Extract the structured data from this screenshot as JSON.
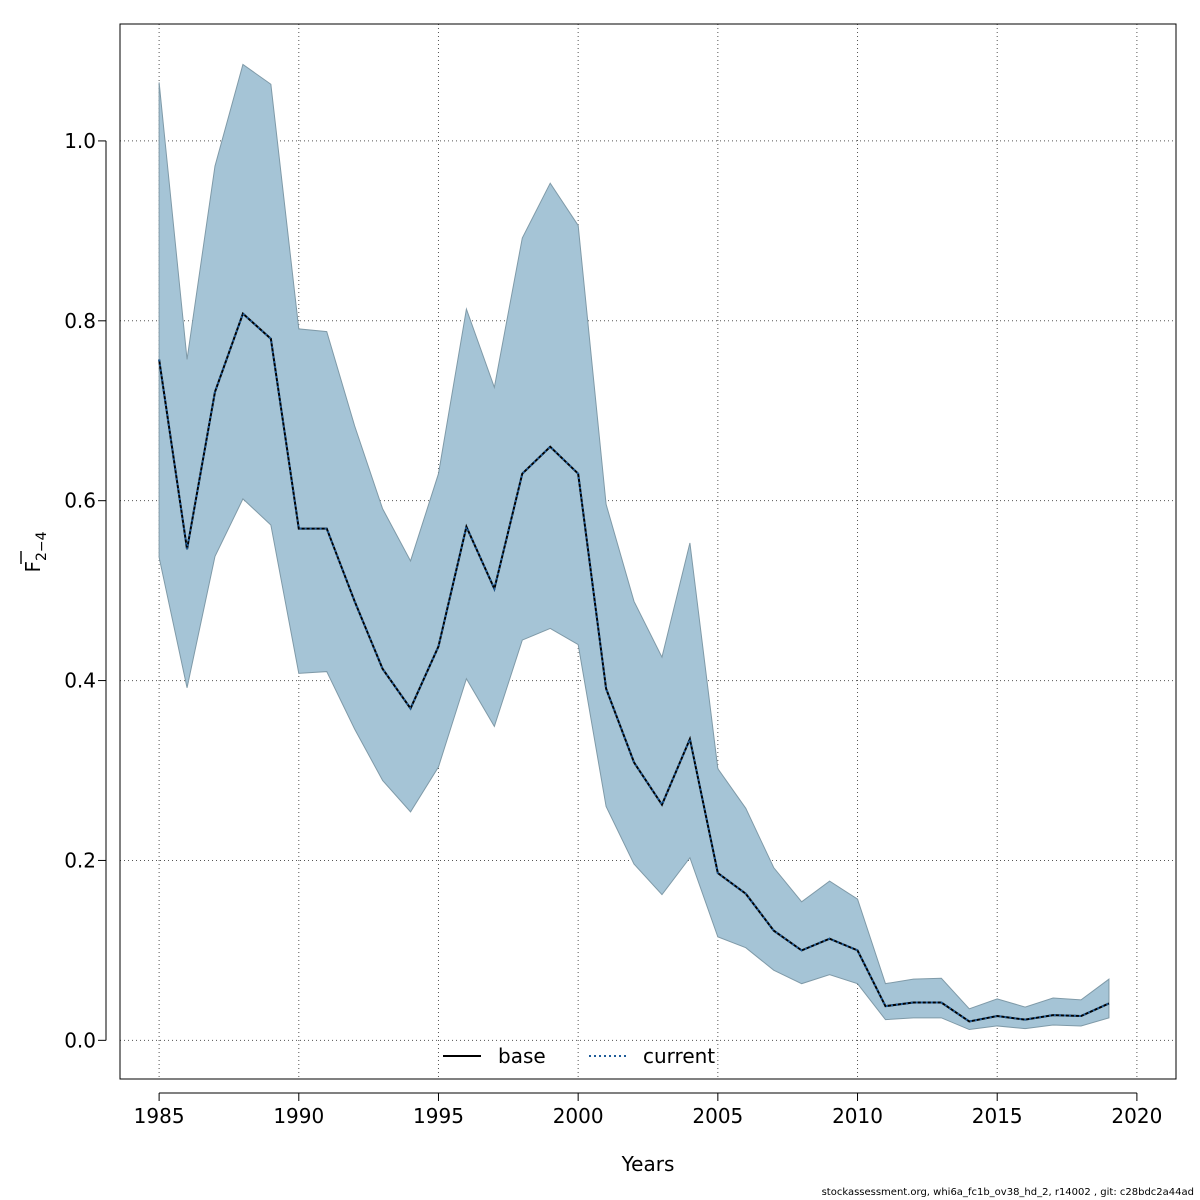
{
  "chart_data": {
    "type": "line",
    "xlabel": "Years",
    "ylabel_main": "F",
    "ylabel_sub": "2−4",
    "xlim": [
      1983.6,
      2021.4
    ],
    "ylim": [
      -0.043,
      1.13
    ],
    "x_ticks": [
      1985,
      1990,
      1995,
      2000,
      2005,
      2010,
      2015,
      2020
    ],
    "y_ticks": [
      "0.0",
      "0.2",
      "0.4",
      "0.6",
      "0.8",
      "1.0"
    ],
    "y_tick_values": [
      0.0,
      0.2,
      0.4,
      0.6,
      0.8,
      1.0
    ],
    "grid": true,
    "legend_position": "bottom-center",
    "legend": [
      {
        "label": "base",
        "style": "solid",
        "color": "#000000"
      },
      {
        "label": "current",
        "style": "dotted",
        "color": "#1f5c99"
      }
    ],
    "band_color": "#a5c4d6",
    "band_edge_color": "#7f9aa8",
    "years": [
      1985,
      1986,
      1987,
      1988,
      1989,
      1990,
      1991,
      1992,
      1993,
      1994,
      1995,
      1996,
      1997,
      1998,
      1999,
      2000,
      2001,
      2002,
      2003,
      2004,
      2005,
      2006,
      2007,
      2008,
      2009,
      2010,
      2011,
      2012,
      2013,
      2014,
      2015,
      2016,
      2017,
      2018,
      2019
    ],
    "series": [
      {
        "name": "base",
        "values": [
          0.757,
          0.546,
          0.721,
          0.808,
          0.78,
          0.569,
          0.569,
          0.488,
          0.413,
          0.369,
          0.438,
          0.571,
          0.502,
          0.63,
          0.66,
          0.63,
          0.391,
          0.309,
          0.262,
          0.335,
          0.186,
          0.163,
          0.122,
          0.1,
          0.113,
          0.1,
          0.038,
          0.042,
          0.042,
          0.021,
          0.027,
          0.023,
          0.028,
          0.027,
          0.041
        ]
      },
      {
        "name": "current",
        "values": [
          0.757,
          0.546,
          0.721,
          0.808,
          0.78,
          0.569,
          0.569,
          0.488,
          0.413,
          0.369,
          0.438,
          0.571,
          0.502,
          0.63,
          0.66,
          0.63,
          0.391,
          0.309,
          0.262,
          0.335,
          0.186,
          0.163,
          0.122,
          0.1,
          0.113,
          0.1,
          0.038,
          0.042,
          0.042,
          0.021,
          0.027,
          0.023,
          0.028,
          0.027,
          0.041
        ]
      }
    ],
    "ci_upper": [
      1.065,
      0.757,
      0.972,
      1.085,
      1.063,
      0.791,
      0.788,
      0.683,
      0.591,
      0.533,
      0.63,
      0.813,
      0.726,
      0.892,
      0.953,
      0.906,
      0.596,
      0.488,
      0.426,
      0.553,
      0.302,
      0.258,
      0.192,
      0.154,
      0.177,
      0.157,
      0.063,
      0.068,
      0.069,
      0.035,
      0.046,
      0.037,
      0.047,
      0.045,
      0.068
    ],
    "ci_lower": [
      0.537,
      0.392,
      0.538,
      0.602,
      0.573,
      0.408,
      0.41,
      0.346,
      0.289,
      0.254,
      0.304,
      0.402,
      0.349,
      0.445,
      0.458,
      0.44,
      0.26,
      0.196,
      0.162,
      0.203,
      0.115,
      0.103,
      0.078,
      0.063,
      0.073,
      0.063,
      0.023,
      0.025,
      0.025,
      0.012,
      0.016,
      0.013,
      0.017,
      0.016,
      0.025
    ]
  },
  "footer_text": "stockassessment.org, whi6a_fc1b_ov38_hd_2, r14002 , git: c28bdc2a44ad"
}
